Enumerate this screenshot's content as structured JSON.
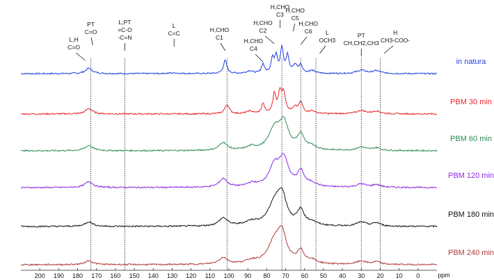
{
  "chart_data": {
    "type": "line",
    "title": "",
    "xlabel": "ppm",
    "ylabel": "",
    "xlim": [
      210,
      -10
    ],
    "x_ticks": [
      200,
      190,
      180,
      170,
      160,
      150,
      140,
      130,
      120,
      110,
      100,
      90,
      80,
      70,
      60,
      50,
      40,
      30,
      20,
      10,
      0
    ],
    "reference_lines_ppm": [
      173,
      155,
      101,
      72,
      62,
      54,
      30,
      20
    ],
    "annotations": [
      {
        "lines": [
          "L,H",
          "C=O"
        ],
        "x": 182,
        "pointer_to": 176
      },
      {
        "lines": [
          "PT",
          "C=O"
        ],
        "x": 173,
        "pointer_to": 172
      },
      {
        "lines": [
          "L,PT",
          "=C-O",
          "-C=N"
        ],
        "x": 155,
        "pointer_to": 155
      },
      {
        "lines": [
          "L",
          "C=C"
        ],
        "x": 129,
        "pointer_to": 129
      },
      {
        "lines": [
          "H,CHO",
          "C1"
        ],
        "x": 105,
        "pointer_to": 102
      },
      {
        "lines": [
          "H,CHO",
          "C4"
        ],
        "x": 87,
        "pointer_to": 82
      },
      {
        "lines": [
          "H,CHO",
          "C2"
        ],
        "x": 82,
        "pointer_to": 76
      },
      {
        "lines": [
          "H,CHO",
          "C3"
        ],
        "x": 73,
        "pointer_to": 73
      },
      {
        "lines": [
          "H,CHO",
          "C5"
        ],
        "x": 65,
        "pointer_to": 66
      },
      {
        "lines": [
          "H,CHO",
          "C6"
        ],
        "x": 58,
        "pointer_to": 62
      },
      {
        "lines": [
          "L",
          "OCH3"
        ],
        "x": 48,
        "pointer_to": 52
      },
      {
        "lines": [
          "PT",
          "CH,CH2,CH3"
        ],
        "x": 30,
        "pointer_to": 30
      },
      {
        "lines": [
          "H",
          "CH3-COO-"
        ],
        "x": 12,
        "pointer_to": 18
      }
    ],
    "series": [
      {
        "name": "in natura",
        "color": "#1f3fe0",
        "peaks": [
          [
            174,
            8,
            2.2
          ],
          [
            129,
            1,
            4
          ],
          [
            102,
            20,
            1.1
          ],
          [
            89,
            4,
            2
          ],
          [
            82,
            14,
            0.9
          ],
          [
            77,
            22,
            0.9
          ],
          [
            75,
            25,
            0.9
          ],
          [
            72,
            38,
            0.9
          ],
          [
            69,
            26,
            0.9
          ],
          [
            65,
            12,
            1.4
          ],
          [
            62,
            12,
            1.1
          ],
          [
            56,
            4,
            2
          ],
          [
            30,
            5,
            3
          ],
          [
            22,
            4,
            2.5
          ]
        ]
      },
      {
        "name": "PBM 30 min",
        "color": "#e8262b",
        "peaks": [
          [
            174,
            8,
            2.2
          ],
          [
            101,
            14,
            1.4
          ],
          [
            89,
            4,
            2
          ],
          [
            82,
            15,
            0.9
          ],
          [
            76,
            28,
            1.0
          ],
          [
            73,
            30,
            1.1
          ],
          [
            71,
            28,
            1.2
          ],
          [
            65,
            8,
            1.6
          ],
          [
            62,
            16,
            1.3
          ],
          [
            56,
            4,
            2
          ],
          [
            30,
            5,
            3
          ],
          [
            22,
            4,
            2.5
          ]
        ]
      },
      {
        "name": "PBM 60 min",
        "color": "#2e8b57",
        "peaks": [
          [
            174,
            8,
            2.5
          ],
          [
            103,
            12,
            2.5
          ],
          [
            88,
            5,
            3
          ],
          [
            76,
            30,
            3.5
          ],
          [
            71,
            40,
            3.0
          ],
          [
            62,
            22,
            2.2
          ],
          [
            56,
            5,
            3
          ],
          [
            30,
            5,
            3
          ],
          [
            22,
            4,
            2.5
          ]
        ]
      },
      {
        "name": "PBM 120 min",
        "color": "#8a2be2",
        "peaks": [
          [
            174,
            9,
            2.5
          ],
          [
            103,
            13,
            2.5
          ],
          [
            88,
            5,
            3
          ],
          [
            76,
            30,
            3.5
          ],
          [
            71,
            40,
            3.0
          ],
          [
            62,
            22,
            2.2
          ],
          [
            56,
            5,
            3
          ],
          [
            30,
            5,
            3
          ],
          [
            22,
            4,
            2.5
          ]
        ]
      },
      {
        "name": "PBM 180 min",
        "color": "#111111",
        "peaks": [
          [
            174,
            7,
            2.5
          ],
          [
            103,
            12,
            2.8
          ],
          [
            88,
            6,
            4
          ],
          [
            76,
            30,
            4
          ],
          [
            72,
            42,
            3.0
          ],
          [
            62,
            22,
            2.2
          ],
          [
            56,
            5,
            3
          ],
          [
            30,
            6,
            3
          ],
          [
            22,
            5,
            2.5
          ]
        ]
      },
      {
        "name": "PBM 240 min",
        "color": "#b03a3a",
        "peaks": [
          [
            174,
            6,
            2.5
          ],
          [
            103,
            10,
            2.8
          ],
          [
            88,
            5,
            4
          ],
          [
            76,
            30,
            4
          ],
          [
            72,
            42,
            3.0
          ],
          [
            62,
            18,
            2.2
          ],
          [
            56,
            5,
            3
          ],
          [
            30,
            5,
            3
          ],
          [
            22,
            4,
            2.5
          ]
        ]
      }
    ],
    "grid": false,
    "legend": "right, beside each trace"
  }
}
